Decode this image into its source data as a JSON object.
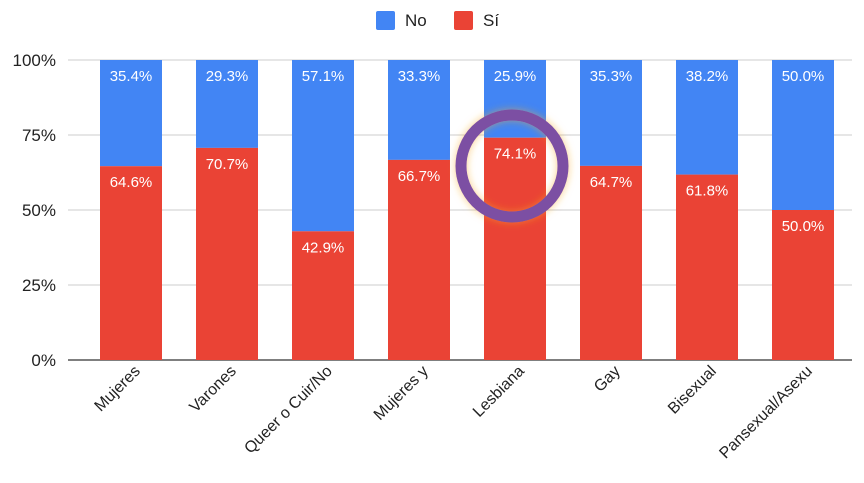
{
  "chart_data": {
    "type": "bar",
    "stacked": true,
    "percent_stacked": true,
    "categories": [
      "Mujeres",
      "Varones",
      "Queer o Cuir/No",
      "Mujeres y",
      "Lesbiana",
      "Gay",
      "Bisexual",
      "Pansexual/Asexu"
    ],
    "series": [
      {
        "name": "Sí",
        "color": "#ea4335",
        "values": [
          64.6,
          70.7,
          42.9,
          66.7,
          74.1,
          64.7,
          61.8,
          50.0
        ],
        "labels": [
          "64.6%",
          "70.7%",
          "42.9%",
          "66.7%",
          "74.1%",
          "64.7%",
          "61.8%",
          "50.0%"
        ]
      },
      {
        "name": "No",
        "color": "#4285f4",
        "values": [
          35.4,
          29.3,
          57.1,
          33.3,
          25.9,
          35.3,
          38.2,
          50.0
        ],
        "labels": [
          "35.4%",
          "29.3%",
          "57.1%",
          "33.3%",
          "25.9%",
          "35.3%",
          "38.2%",
          "50.0%"
        ]
      }
    ],
    "legend": {
      "position": "top",
      "items": [
        {
          "label": "No",
          "color": "#4285f4"
        },
        {
          "label": "Sí",
          "color": "#ea4335"
        }
      ]
    },
    "y_ticks": [
      "0%",
      "25%",
      "50%",
      "75%",
      "100%"
    ],
    "ylim": [
      0,
      100
    ],
    "grid": true,
    "highlight": {
      "category": "Lesbiana",
      "shape": "circle",
      "color": "#7b4fa3"
    }
  }
}
